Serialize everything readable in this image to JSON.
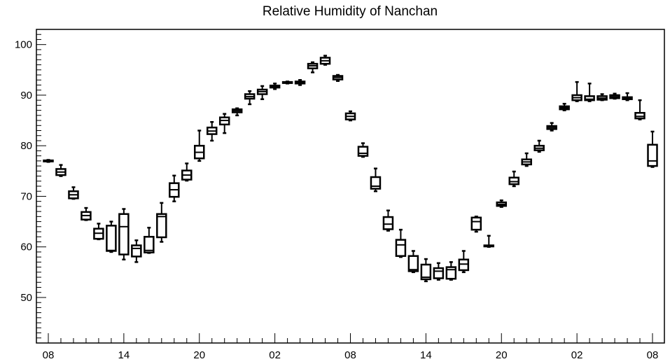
{
  "chart_data": {
    "type": "boxplot",
    "title": "Relative Humidity of Nanchan",
    "xlabel": "",
    "ylabel": "",
    "ylim": [
      41,
      103
    ],
    "y_ticks": [
      50,
      60,
      70,
      80,
      90,
      100
    ],
    "x_tick_labels": [
      "08",
      "14",
      "20",
      "02",
      "08",
      "14",
      "20",
      "02",
      "08"
    ],
    "grid": false,
    "boxes": [
      {
        "hour": 0,
        "min": 76.8,
        "q1": 76.9,
        "median": 77.0,
        "q3": 77.1,
        "max": 77.2
      },
      {
        "hour": 1,
        "min": 74.0,
        "q1": 74.2,
        "median": 74.8,
        "q3": 75.4,
        "max": 76.2
      },
      {
        "hour": 2,
        "min": 69.5,
        "q1": 69.6,
        "median": 70.3,
        "q3": 71.0,
        "max": 71.8
      },
      {
        "hour": 3,
        "min": 65.3,
        "q1": 65.4,
        "median": 66.2,
        "q3": 66.9,
        "max": 67.7
      },
      {
        "hour": 4,
        "min": 61.5,
        "q1": 61.6,
        "median": 62.7,
        "q3": 63.6,
        "max": 64.6
      },
      {
        "hour": 5,
        "min": 59.0,
        "q1": 59.2,
        "median": 59.3,
        "q3": 64.2,
        "max": 65.0
      },
      {
        "hour": 6,
        "min": 57.5,
        "q1": 58.5,
        "median": 64.0,
        "q3": 66.5,
        "max": 67.5
      },
      {
        "hour": 7,
        "min": 57.0,
        "q1": 58.1,
        "median": 59.7,
        "q3": 60.3,
        "max": 61.3
      },
      {
        "hour": 8,
        "min": 58.8,
        "q1": 58.9,
        "median": 59.3,
        "q3": 62.0,
        "max": 63.8
      },
      {
        "hour": 9,
        "min": 61.0,
        "q1": 61.9,
        "median": 66.0,
        "q3": 66.5,
        "max": 68.7
      },
      {
        "hour": 10,
        "min": 69.0,
        "q1": 69.9,
        "median": 71.3,
        "q3": 72.6,
        "max": 74.1
      },
      {
        "hour": 11,
        "min": 73.1,
        "q1": 73.3,
        "median": 74.2,
        "q3": 75.1,
        "max": 76.5
      },
      {
        "hour": 12,
        "min": 77.0,
        "q1": 77.5,
        "median": 78.7,
        "q3": 80.0,
        "max": 83.0
      },
      {
        "hour": 13,
        "min": 81.0,
        "q1": 82.3,
        "median": 82.9,
        "q3": 83.6,
        "max": 84.7
      },
      {
        "hour": 14,
        "min": 82.5,
        "q1": 84.2,
        "median": 85.0,
        "q3": 85.6,
        "max": 86.3
      },
      {
        "hour": 15,
        "min": 86.0,
        "q1": 86.6,
        "median": 86.9,
        "q3": 87.2,
        "max": 87.4
      },
      {
        "hour": 16,
        "min": 88.2,
        "q1": 89.3,
        "median": 89.7,
        "q3": 90.2,
        "max": 90.8
      },
      {
        "hour": 17,
        "min": 89.2,
        "q1": 90.2,
        "median": 90.7,
        "q3": 91.1,
        "max": 91.8
      },
      {
        "hour": 18,
        "min": 91.2,
        "q1": 91.5,
        "median": 91.7,
        "q3": 91.9,
        "max": 92.3
      },
      {
        "hour": 19,
        "min": 92.3,
        "q1": 92.4,
        "median": 92.5,
        "q3": 92.6,
        "max": 92.7
      },
      {
        "hour": 20,
        "min": 92.0,
        "q1": 92.3,
        "median": 92.5,
        "q3": 92.7,
        "max": 93.0
      },
      {
        "hour": 21,
        "min": 94.5,
        "q1": 95.3,
        "median": 95.8,
        "q3": 96.2,
        "max": 96.5
      },
      {
        "hour": 22,
        "min": 96.0,
        "q1": 96.2,
        "median": 96.8,
        "q3": 97.4,
        "max": 97.8
      },
      {
        "hour": 23,
        "min": 92.8,
        "q1": 93.1,
        "median": 93.5,
        "q3": 93.8,
        "max": 94.0
      },
      {
        "hour": 24,
        "min": 85.0,
        "q1": 85.2,
        "median": 85.8,
        "q3": 86.4,
        "max": 86.8
      },
      {
        "hour": 25,
        "min": 77.8,
        "q1": 78.0,
        "median": 78.5,
        "q3": 79.8,
        "max": 80.5
      },
      {
        "hour": 26,
        "min": 71.0,
        "q1": 71.5,
        "median": 72.0,
        "q3": 73.8,
        "max": 75.5
      },
      {
        "hour": 27,
        "min": 63.2,
        "q1": 63.5,
        "median": 64.5,
        "q3": 65.9,
        "max": 67.2
      },
      {
        "hour": 28,
        "min": 58.0,
        "q1": 58.2,
        "median": 60.4,
        "q3": 61.4,
        "max": 63.4
      },
      {
        "hour": 29,
        "min": 55.0,
        "q1": 55.2,
        "median": 55.5,
        "q3": 58.2,
        "max": 59.2
      },
      {
        "hour": 30,
        "min": 53.2,
        "q1": 53.6,
        "median": 54.0,
        "q3": 56.5,
        "max": 57.6
      },
      {
        "hour": 31,
        "min": 53.5,
        "q1": 53.8,
        "median": 55.2,
        "q3": 55.8,
        "max": 56.8
      },
      {
        "hour": 32,
        "min": 53.5,
        "q1": 53.7,
        "median": 55.5,
        "q3": 56.0,
        "max": 57.0
      },
      {
        "hour": 33,
        "min": 55.0,
        "q1": 55.4,
        "median": 56.6,
        "q3": 57.5,
        "max": 59.2
      },
      {
        "hour": 34,
        "min": 63.0,
        "q1": 63.4,
        "median": 65.0,
        "q3": 65.8,
        "max": 66.0
      },
      {
        "hour": 35,
        "min": 60.0,
        "q1": 60.1,
        "median": 60.2,
        "q3": 60.3,
        "max": 62.2
      },
      {
        "hour": 36,
        "min": 67.9,
        "q1": 68.1,
        "median": 68.4,
        "q3": 68.8,
        "max": 69.2
      },
      {
        "hour": 37,
        "min": 72.0,
        "q1": 72.4,
        "median": 72.9,
        "q3": 73.7,
        "max": 74.9
      },
      {
        "hour": 38,
        "min": 76.0,
        "q1": 76.3,
        "median": 76.8,
        "q3": 77.3,
        "max": 78.5
      },
      {
        "hour": 39,
        "min": 78.8,
        "q1": 79.1,
        "median": 79.5,
        "q3": 80.0,
        "max": 81.0
      },
      {
        "hour": 40,
        "min": 83.0,
        "q1": 83.3,
        "median": 83.6,
        "q3": 83.9,
        "max": 84.5
      },
      {
        "hour": 41,
        "min": 87.0,
        "q1": 87.2,
        "median": 87.5,
        "q3": 87.8,
        "max": 88.3
      },
      {
        "hour": 42,
        "min": 88.8,
        "q1": 89.0,
        "median": 89.5,
        "q3": 90.0,
        "max": 92.6
      },
      {
        "hour": 43,
        "min": 88.8,
        "q1": 89.0,
        "median": 89.2,
        "q3": 89.8,
        "max": 92.3
      },
      {
        "hour": 44,
        "min": 89.0,
        "q1": 89.1,
        "median": 89.4,
        "q3": 89.8,
        "max": 90.2
      },
      {
        "hour": 45,
        "min": 89.3,
        "q1": 89.4,
        "median": 89.7,
        "q3": 90.0,
        "max": 90.3
      },
      {
        "hour": 46,
        "min": 89.0,
        "q1": 89.2,
        "median": 89.4,
        "q3": 89.6,
        "max": 90.4
      },
      {
        "hour": 47,
        "min": 85.2,
        "q1": 85.4,
        "median": 85.8,
        "q3": 86.5,
        "max": 89.0
      },
      {
        "hour": 48,
        "min": 75.8,
        "q1": 76.0,
        "median": 77.0,
        "q3": 80.2,
        "max": 82.8
      }
    ]
  }
}
